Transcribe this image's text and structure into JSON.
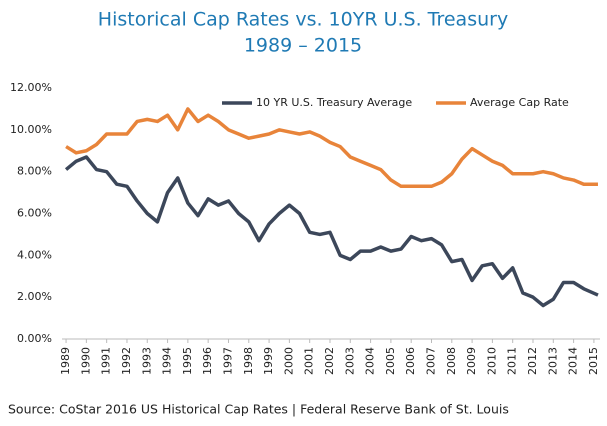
{
  "chart_data": {
    "type": "line",
    "title": "Historical Cap Rates vs. 10YR U.S. Treasury",
    "subtitle": "1989 – 2015",
    "source": "Source: CoStar 2016 US Historical Cap Rates | Federal Reserve Bank of St. Louis",
    "x": [
      1989,
      1989.5,
      1990,
      1990.5,
      1991,
      1991.5,
      1992,
      1992.5,
      1993,
      1993.5,
      1994,
      1994.5,
      1995,
      1995.5,
      1996,
      1996.5,
      1997,
      1997.5,
      1998,
      1998.5,
      1999,
      1999.5,
      2000,
      2000.5,
      2001,
      2001.5,
      2002,
      2002.5,
      2003,
      2003.5,
      2004,
      2004.5,
      2005,
      2005.5,
      2006,
      2006.5,
      2007,
      2007.5,
      2008,
      2008.5,
      2009,
      2009.5,
      2010,
      2010.5,
      2011,
      2011.5,
      2012,
      2012.5,
      2013,
      2013.5,
      2014,
      2014.5,
      2015.2
    ],
    "series": [
      {
        "name": "10 YR U.S. Treasury Average",
        "color": "#3c475a",
        "values": [
          8.1,
          8.5,
          8.7,
          8.1,
          8.0,
          7.4,
          7.3,
          6.6,
          6.0,
          5.6,
          7.0,
          7.7,
          6.5,
          5.9,
          6.7,
          6.4,
          6.6,
          6.0,
          5.6,
          4.7,
          5.5,
          6.0,
          6.4,
          6.0,
          5.1,
          5.0,
          5.1,
          4.0,
          3.8,
          4.2,
          4.2,
          4.4,
          4.2,
          4.3,
          4.9,
          4.7,
          4.8,
          4.5,
          3.7,
          3.8,
          2.8,
          3.5,
          3.6,
          2.9,
          3.4,
          2.2,
          2.0,
          1.6,
          1.9,
          2.7,
          2.7,
          2.4,
          2.1
        ]
      },
      {
        "name": "Average Cap Rate",
        "color": "#e8843a",
        "values": [
          9.2,
          8.9,
          9.0,
          9.3,
          9.8,
          9.8,
          9.8,
          10.4,
          10.5,
          10.4,
          10.7,
          10.0,
          11.0,
          10.4,
          10.7,
          10.4,
          10.0,
          9.8,
          9.6,
          9.7,
          9.8,
          10.0,
          9.9,
          9.8,
          9.9,
          9.7,
          9.4,
          9.2,
          8.7,
          8.5,
          8.3,
          8.1,
          7.6,
          7.3,
          7.3,
          7.3,
          7.3,
          7.5,
          7.9,
          8.6,
          9.1,
          8.8,
          8.5,
          8.3,
          7.9,
          7.9,
          7.9,
          8.0,
          7.9,
          7.7,
          7.6,
          7.4,
          7.4
        ]
      }
    ],
    "xlim": [
      1988.8,
      2015.3
    ],
    "xticks": [
      1989,
      1990,
      1991,
      1992,
      1993,
      1994,
      1995,
      1996,
      1997,
      1998,
      1999,
      2000,
      2001,
      2002,
      2003,
      2004,
      2005,
      2006,
      2007,
      2008,
      2009,
      2010,
      2011,
      2012,
      2013,
      2014,
      2015
    ],
    "ylim": [
      0,
      12
    ],
    "yticks": [
      {
        "value": 0,
        "label": "0.00%"
      },
      {
        "value": 2,
        "label": "2.00%"
      },
      {
        "value": 4,
        "label": "4.00%"
      },
      {
        "value": 6,
        "label": "6.00%"
      },
      {
        "value": 8,
        "label": "8.00%"
      },
      {
        "value": 10,
        "label": "10.00%"
      },
      {
        "value": 12,
        "label": "12.00%"
      }
    ],
    "grid": false,
    "legend": "top"
  }
}
